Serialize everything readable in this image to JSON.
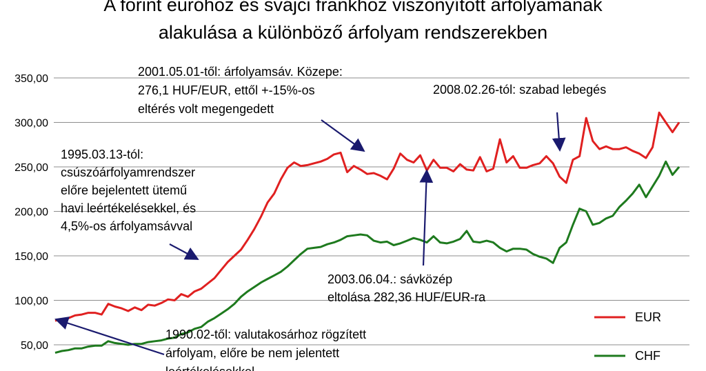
{
  "chart_data": {
    "type": "line",
    "title_lines": [
      "A forint euróhoz és svájci frankhoz viszonyított árfolyamának",
      "alakulása a különböző árfolyam rendszerekben"
    ],
    "xlabel": "",
    "ylabel": "",
    "ylim": [
      0,
      350
    ],
    "y_ticks": [
      "50,00",
      "100,00",
      "150,00",
      "200,00",
      "250,00",
      "300,00",
      "350,00"
    ],
    "grid": true,
    "legend_position": "bottom-right",
    "series": [
      {
        "name": "EUR",
        "color": "#e02020",
        "values": [
          77,
          79,
          80,
          83,
          84,
          86,
          86,
          84,
          96,
          93,
          91,
          88,
          92,
          89,
          95,
          94,
          97,
          101,
          100,
          107,
          104,
          110,
          113,
          119,
          125,
          134,
          143,
          150,
          157,
          168,
          180,
          194,
          210,
          220,
          236,
          249,
          255,
          251,
          252,
          254,
          256,
          259,
          264,
          266,
          244,
          251,
          247,
          242,
          243,
          240,
          236,
          248,
          265,
          258,
          255,
          263,
          246,
          258,
          249,
          249,
          245,
          253,
          247,
          246,
          261,
          245,
          248,
          281,
          255,
          262,
          249,
          249,
          252,
          254,
          262,
          254,
          239,
          232,
          258,
          262,
          305,
          279,
          270,
          273,
          270,
          270,
          272,
          268,
          265,
          260,
          272,
          311,
          300,
          289,
          300
        ]
      },
      {
        "name": "CHF",
        "color": "#1e7a1e",
        "values": [
          41,
          43,
          44,
          46,
          46,
          48,
          49,
          49,
          54,
          52,
          51,
          50,
          51,
          51,
          53,
          54,
          55,
          57,
          58,
          62,
          64,
          68,
          70,
          76,
          80,
          85,
          90,
          96,
          104,
          110,
          115,
          120,
          124,
          128,
          132,
          138,
          145,
          152,
          158,
          159,
          160,
          163,
          165,
          168,
          172,
          173,
          174,
          173,
          167,
          165,
          166,
          162,
          164,
          167,
          170,
          168,
          165,
          172,
          165,
          164,
          166,
          169,
          178,
          166,
          165,
          167,
          165,
          159,
          155,
          158,
          158,
          157,
          152,
          149,
          147,
          142,
          159,
          165,
          185,
          203,
          200,
          185,
          187,
          192,
          195,
          205,
          212,
          220,
          230,
          216,
          228,
          240,
          256,
          241,
          250
        ]
      }
    ],
    "annotations": [
      {
        "lines": [
          "2001.05.01-től: árfolyamsáv. Közepe:",
          "276,1 HUF/EUR, ettől +-15%-os",
          "eltérés volt megengedett"
        ]
      },
      {
        "lines": [
          "2008.02.26-tól: szabad lebegés"
        ]
      },
      {
        "lines": [
          "1995.03.13-tól:",
          "csúszóárfolyamrendszer",
          "előre bejelentett ütemű",
          "havi leértékelésekkel,  és",
          "4,5%-os árfolyamsávval"
        ]
      },
      {
        "lines": [
          "2003.06.04.: sávközép",
          "eltolása 282,36 HUF/EUR-ra"
        ]
      },
      {
        "lines": [
          "1990.02-től: valutakosárhoz rögzített",
          "árfolyam, előre be nem jelentett",
          "leértékelésekkel"
        ]
      }
    ]
  }
}
